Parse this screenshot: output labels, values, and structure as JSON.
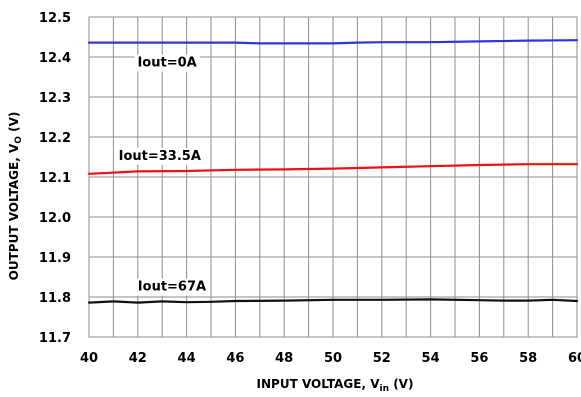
{
  "chart_data": {
    "type": "line",
    "title": "",
    "xlabel": {
      "main": "INPUT VOLTAGE, V",
      "sub": "in",
      "unit": " (V)"
    },
    "ylabel": {
      "main": "OUTPUT VOLTAGE, V",
      "sub": "O",
      "unit": " (V)"
    },
    "xlim": [
      40,
      60
    ],
    "ylim": [
      11.7,
      12.5
    ],
    "grid": true,
    "x_ticks": [
      40,
      42,
      44,
      46,
      48,
      50,
      52,
      54,
      56,
      58,
      60
    ],
    "x_tick_labels": [
      "40",
      "42",
      "44",
      "46",
      "48",
      "50",
      "52",
      "54",
      "56",
      "58",
      "60"
    ],
    "y_ticks": [
      11.7,
      11.8,
      11.9,
      12.0,
      12.1,
      12.2,
      12.3,
      12.4,
      12.5
    ],
    "y_tick_labels": [
      "11.7",
      "11.8",
      "11.9",
      "12.0",
      "12.1",
      "12.2",
      "12.3",
      "12.4",
      "12.5"
    ],
    "x_grid": [
      41,
      42,
      43,
      44,
      45,
      46,
      47,
      48,
      49,
      50,
      51,
      52,
      53,
      54,
      55,
      56,
      57,
      58,
      59
    ],
    "series": [
      {
        "name": "Iout=0A",
        "color": "#3333dd",
        "x": [
          40,
          42,
          44,
          46,
          47,
          48,
          50,
          51,
          52,
          54,
          56,
          58,
          60
        ],
        "values": [
          12.436,
          12.436,
          12.436,
          12.436,
          12.434,
          12.434,
          12.434,
          12.436,
          12.437,
          12.437,
          12.439,
          12.441,
          12.442
        ]
      },
      {
        "name": "Iout=33.5A",
        "color": "#ee1111",
        "x": [
          40,
          42,
          44,
          46,
          48,
          50,
          52,
          54,
          56,
          58,
          60
        ],
        "values": [
          12.108,
          12.114,
          12.115,
          12.118,
          12.119,
          12.121,
          12.124,
          12.127,
          12.13,
          12.132,
          12.132
        ]
      },
      {
        "name": "Iout=67A",
        "color": "#111111",
        "x": [
          40,
          41,
          42,
          43,
          44,
          45,
          46,
          48,
          50,
          52,
          54,
          56,
          57,
          58,
          59,
          60
        ],
        "values": [
          11.786,
          11.789,
          11.786,
          11.789,
          11.787,
          11.788,
          11.79,
          11.791,
          11.793,
          11.793,
          11.794,
          11.792,
          11.791,
          11.791,
          11.793,
          11.79
        ]
      }
    ]
  }
}
